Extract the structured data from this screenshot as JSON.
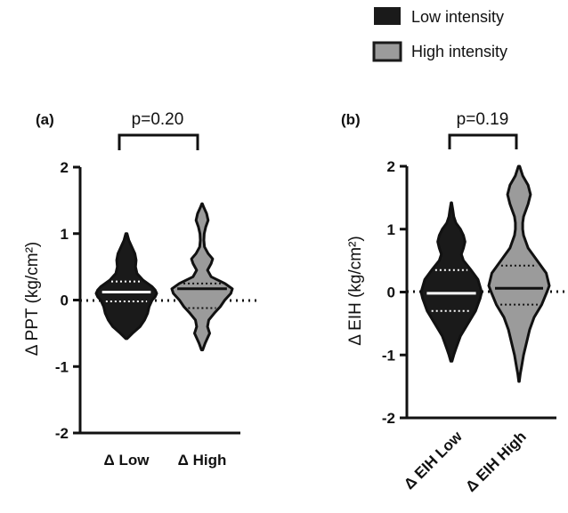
{
  "legend": [
    {
      "label": "Low intensity",
      "color": "#1a1a1a"
    },
    {
      "label": "High intensity",
      "color": "#9b9b9b"
    }
  ],
  "chart_data": [
    {
      "type": "violin",
      "panel_label": "(a)",
      "ylabel": "Δ PPT (kg/cm²)",
      "ylim": [
        -2,
        2
      ],
      "yticks": [
        "2",
        "1",
        "0",
        "-1",
        "-2"
      ],
      "categories": [
        "Δ Low",
        "Δ High"
      ],
      "comparison_label": "p=0.20",
      "reference_line": 0,
      "series": [
        {
          "category": "Δ Low",
          "fill": "#1a1a1a",
          "median": 0.12,
          "q1": -0.02,
          "q3": 0.28,
          "min": -0.58,
          "max": 1.0,
          "profile": [
            [
              -0.58,
              0.02
            ],
            [
              -0.5,
              0.2
            ],
            [
              -0.4,
              0.45
            ],
            [
              -0.3,
              0.6
            ],
            [
              -0.2,
              0.7
            ],
            [
              -0.1,
              0.75
            ],
            [
              0.0,
              0.85
            ],
            [
              0.05,
              0.95
            ],
            [
              0.1,
              1.0
            ],
            [
              0.15,
              0.95
            ],
            [
              0.2,
              0.85
            ],
            [
              0.3,
              0.55
            ],
            [
              0.4,
              0.35
            ],
            [
              0.5,
              0.3
            ],
            [
              0.6,
              0.32
            ],
            [
              0.7,
              0.28
            ],
            [
              0.8,
              0.18
            ],
            [
              0.9,
              0.08
            ],
            [
              1.0,
              0.02
            ]
          ]
        },
        {
          "category": "Δ High",
          "fill": "#9b9b9b",
          "median": 0.17,
          "q1": -0.12,
          "q3": 0.25,
          "min": -0.75,
          "max": 1.45,
          "profile": [
            [
              -0.75,
              0.02
            ],
            [
              -0.65,
              0.1
            ],
            [
              -0.5,
              0.25
            ],
            [
              -0.4,
              0.18
            ],
            [
              -0.3,
              0.22
            ],
            [
              -0.2,
              0.4
            ],
            [
              -0.1,
              0.6
            ],
            [
              0.0,
              0.75
            ],
            [
              0.1,
              0.95
            ],
            [
              0.17,
              1.0
            ],
            [
              0.25,
              0.75
            ],
            [
              0.35,
              0.3
            ],
            [
              0.45,
              0.18
            ],
            [
              0.55,
              0.3
            ],
            [
              0.62,
              0.35
            ],
            [
              0.7,
              0.2
            ],
            [
              0.8,
              0.08
            ],
            [
              0.9,
              0.06
            ],
            [
              1.0,
              0.07
            ],
            [
              1.1,
              0.12
            ],
            [
              1.2,
              0.2
            ],
            [
              1.3,
              0.15
            ],
            [
              1.4,
              0.05
            ],
            [
              1.45,
              0.01
            ]
          ]
        }
      ]
    },
    {
      "type": "violin",
      "panel_label": "(b)",
      "ylabel": "Δ EIH (kg/cm²)",
      "ylim": [
        -2,
        2
      ],
      "yticks": [
        "2",
        "1",
        "0",
        "-1",
        "-2"
      ],
      "categories": [
        "Δ EIH Low",
        "Δ EIH High"
      ],
      "comparison_label": "p=0.19",
      "reference_line": 0,
      "series": [
        {
          "category": "Δ EIH Low",
          "fill": "#1a1a1a",
          "median": -0.02,
          "q1": -0.3,
          "q3": 0.35,
          "min": -1.1,
          "max": 1.42,
          "profile": [
            [
              -1.1,
              0.02
            ],
            [
              -1.0,
              0.08
            ],
            [
              -0.9,
              0.15
            ],
            [
              -0.7,
              0.3
            ],
            [
              -0.5,
              0.55
            ],
            [
              -0.3,
              0.8
            ],
            [
              -0.1,
              0.95
            ],
            [
              0.0,
              1.0
            ],
            [
              0.2,
              0.88
            ],
            [
              0.35,
              0.65
            ],
            [
              0.5,
              0.4
            ],
            [
              0.6,
              0.33
            ],
            [
              0.7,
              0.4
            ],
            [
              0.8,
              0.45
            ],
            [
              0.9,
              0.4
            ],
            [
              1.0,
              0.3
            ],
            [
              1.1,
              0.15
            ],
            [
              1.2,
              0.08
            ],
            [
              1.3,
              0.05
            ],
            [
              1.42,
              0.01
            ]
          ]
        },
        {
          "category": "Δ EIH High",
          "fill": "#9b9b9b",
          "median": 0.06,
          "q1": -0.2,
          "q3": 0.42,
          "min": -1.42,
          "max": 2.0,
          "profile": [
            [
              -1.42,
              0.01
            ],
            [
              -1.3,
              0.04
            ],
            [
              -1.2,
              0.08
            ],
            [
              -1.0,
              0.15
            ],
            [
              -0.8,
              0.25
            ],
            [
              -0.6,
              0.35
            ],
            [
              -0.4,
              0.5
            ],
            [
              -0.2,
              0.75
            ],
            [
              0.0,
              0.92
            ],
            [
              0.1,
              1.0
            ],
            [
              0.3,
              0.9
            ],
            [
              0.5,
              0.6
            ],
            [
              0.7,
              0.3
            ],
            [
              0.9,
              0.15
            ],
            [
              1.0,
              0.12
            ],
            [
              1.1,
              0.12
            ],
            [
              1.2,
              0.15
            ],
            [
              1.4,
              0.3
            ],
            [
              1.55,
              0.38
            ],
            [
              1.7,
              0.3
            ],
            [
              1.85,
              0.12
            ],
            [
              2.0,
              0.02
            ]
          ]
        }
      ]
    }
  ]
}
